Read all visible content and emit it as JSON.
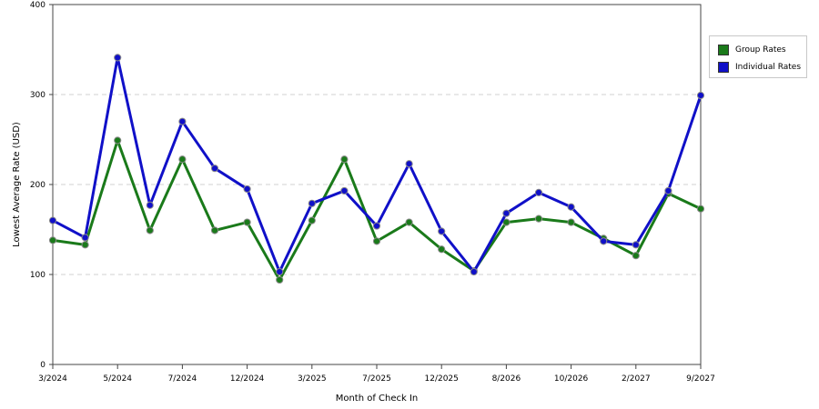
{
  "chart_data": {
    "type": "line",
    "xlabel": "Month of Check In",
    "ylabel": "Lowest Average Rate (USD)",
    "ylim": [
      0,
      400
    ],
    "yticks": [
      0,
      100,
      200,
      300,
      400
    ],
    "x_tick_labels": [
      "3/2024",
      "5/2024",
      "7/2024",
      "12/2024",
      "3/2025",
      "7/2025",
      "12/2025",
      "8/2026",
      "10/2026",
      "2/2027",
      "9/2027"
    ],
    "point_count": 21,
    "grid": true,
    "legend_position": "right",
    "series": [
      {
        "name": "Group Rates",
        "color": "#1a7a1a",
        "values": [
          138,
          133,
          249,
          149,
          228,
          149,
          158,
          94,
          160,
          228,
          137,
          158,
          128,
          104,
          158,
          162,
          158,
          140,
          121,
          190,
          173
        ]
      },
      {
        "name": "Individual Rates",
        "color": "#1010c8",
        "values": [
          160,
          141,
          341,
          177,
          270,
          218,
          195,
          103,
          179,
          193,
          154,
          223,
          148,
          103,
          168,
          191,
          175,
          137,
          133,
          193,
          299
        ]
      }
    ]
  }
}
